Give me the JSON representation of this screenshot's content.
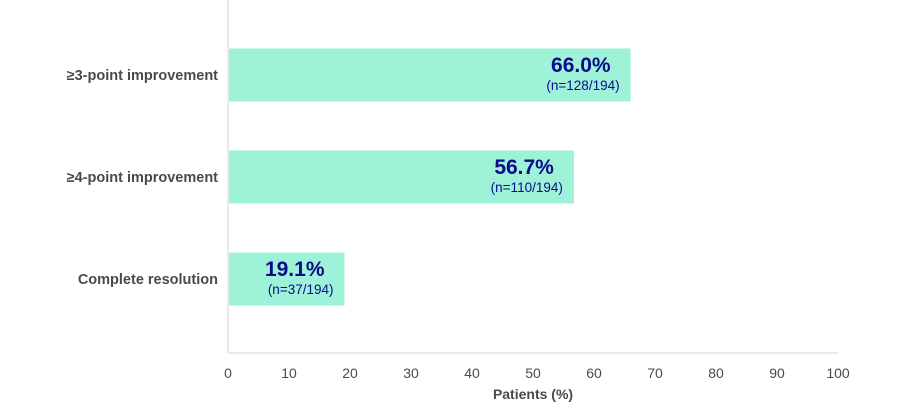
{
  "chart_data": {
    "type": "bar",
    "orientation": "horizontal",
    "categories": [
      "≥3-point improvement",
      "≥4-point improvement",
      "Complete resolution"
    ],
    "values": [
      66.0,
      56.7,
      19.1
    ],
    "value_labels": [
      "66.0%",
      "56.7%",
      "19.1%"
    ],
    "count_labels": [
      "(n=128/194)",
      "(n=110/194)",
      "(n=37/194)"
    ],
    "xlabel": "Patients (%)",
    "ylabel": "",
    "title": "",
    "xlim": [
      0,
      100
    ],
    "xticks": [
      0,
      10,
      20,
      30,
      40,
      50,
      60,
      70,
      80,
      90,
      100
    ],
    "grid": false,
    "legend": "none"
  },
  "colors": {
    "bar_fill": "#9df2d8",
    "value_label": "#0a0a8a",
    "axis_line": "#d6d6d6",
    "text": "#4a4a4a"
  }
}
